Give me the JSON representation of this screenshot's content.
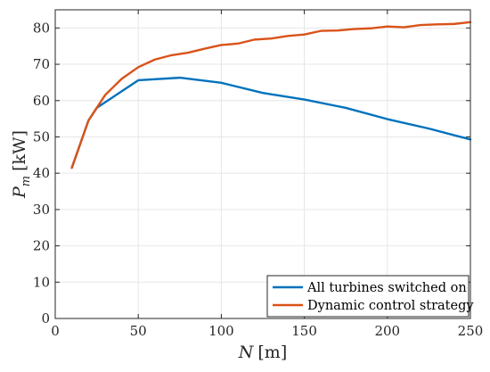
{
  "chart_data": {
    "type": "line",
    "xlabel": {
      "symbol": "N",
      "unit": "[m]"
    },
    "ylabel": {
      "symbol": "P",
      "subscript": "m",
      "unit": "[kW]"
    },
    "xlim": [
      0,
      250
    ],
    "ylim": [
      0,
      85
    ],
    "xticks": [
      0,
      50,
      100,
      150,
      200,
      250
    ],
    "yticks": [
      0,
      10,
      20,
      30,
      40,
      50,
      60,
      70,
      80
    ],
    "grid": true,
    "legend_position": "bottom-right",
    "series": [
      {
        "name": "All turbines switched on",
        "color": "#0072BD",
        "x": [
          10,
          20,
          25,
          50,
          75,
          100,
          125,
          150,
          175,
          200,
          225,
          250
        ],
        "y": [
          41.5,
          54.5,
          58.0,
          65.6,
          66.3,
          64.9,
          62.1,
          60.3,
          58.0,
          54.9,
          52.3,
          49.3
        ]
      },
      {
        "name": "Dynamic control strategy",
        "color": "#D95319",
        "x": [
          10,
          20,
          30,
          40,
          50,
          60,
          70,
          80,
          90,
          100,
          110,
          120,
          130,
          140,
          150,
          160,
          170,
          180,
          190,
          200,
          210,
          220,
          230,
          240,
          250
        ],
        "y": [
          41.5,
          54.5,
          61.5,
          66.0,
          69.2,
          71.3,
          72.5,
          73.2,
          74.3,
          75.3,
          75.7,
          76.8,
          77.1,
          77.8,
          78.2,
          79.2,
          79.3,
          79.7,
          79.9,
          80.4,
          80.2,
          80.8,
          81.0,
          81.1,
          81.6
        ]
      }
    ]
  }
}
